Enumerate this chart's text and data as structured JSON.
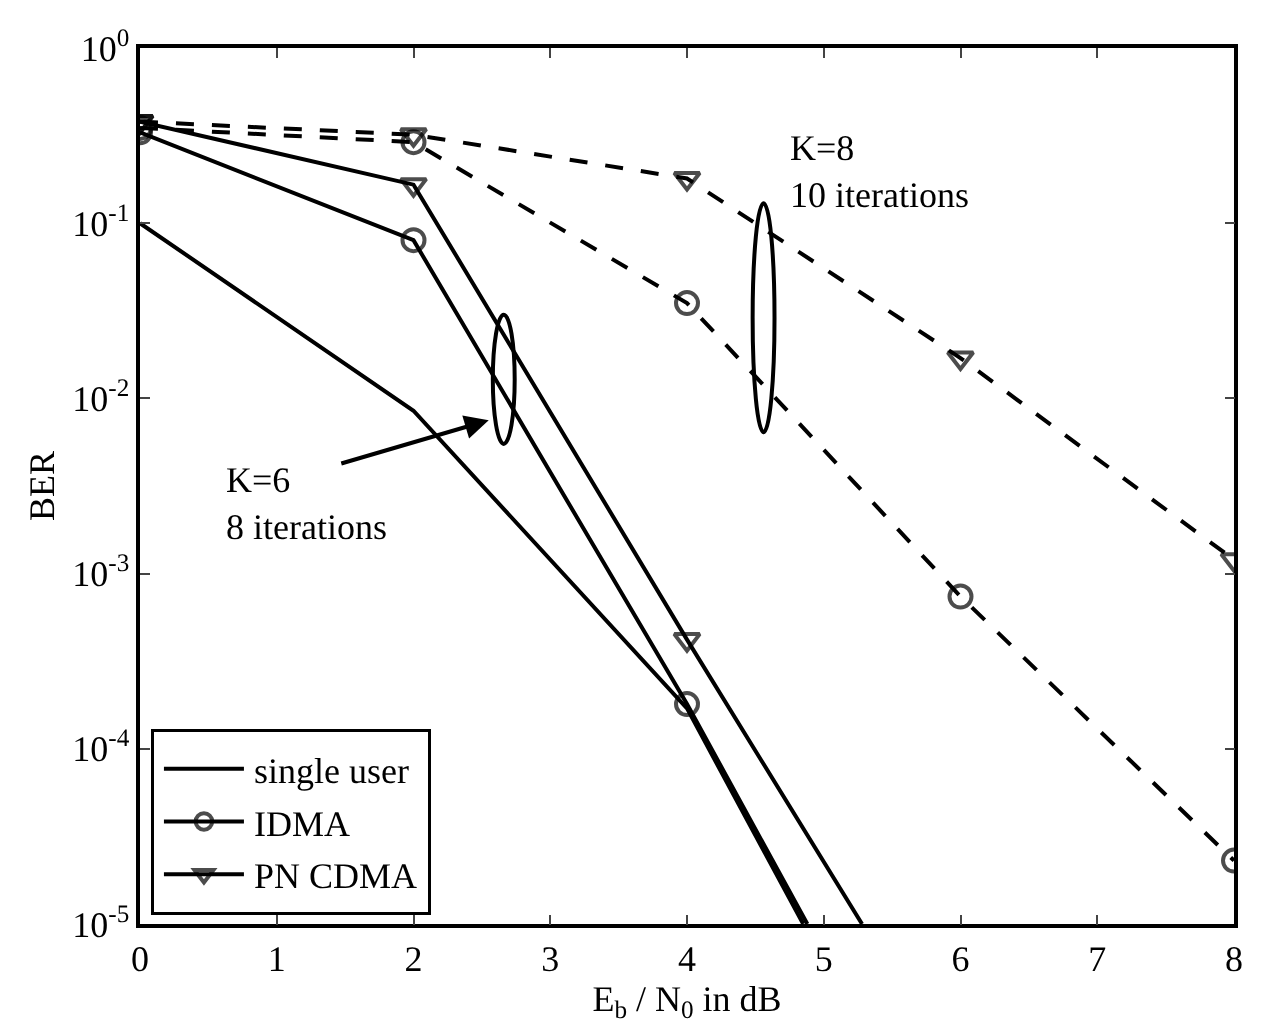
{
  "chart_data": {
    "type": "line",
    "xlabel": "E$_{b}$ / N$_{0}$ in dB",
    "ylabel": "BER",
    "xlim": [
      0,
      8
    ],
    "xticks": [
      0,
      1,
      2,
      3,
      4,
      5,
      6,
      7,
      8
    ],
    "ylim": [
      1e-05,
      1
    ],
    "log": "y",
    "yticks": [
      {
        "value": 1,
        "label": "10$^{0}$"
      },
      {
        "value": 0.1,
        "label": "10$^{-1}$"
      },
      {
        "value": 0.01,
        "label": "10$^{-2}$"
      },
      {
        "value": 0.001,
        "label": "10$^{-3}$"
      },
      {
        "value": 0.0001,
        "label": "10$^{-4}$"
      },
      {
        "value": 1e-05,
        "label": "10$^{-5}$"
      }
    ],
    "legend": "bottom left",
    "series": [
      {
        "name": "single user",
        "color": "#000000",
        "line_style": "solid",
        "marker": "none",
        "x": [
          0,
          2,
          4,
          4.85
        ],
        "values": [
          0.1,
          0.0085,
          0.00017,
          1e-05
        ]
      },
      {
        "name": "IDMA",
        "color": "#000000",
        "line_style": "solid",
        "marker": "circle",
        "x": [
          0,
          2,
          4,
          4.88
        ],
        "values": [
          0.33,
          0.08,
          0.00018,
          1e-05
        ]
      },
      {
        "name": "PN CDMA",
        "color": "#000000",
        "line_style": "solid",
        "marker": "triangle",
        "x": [
          0,
          2,
          4,
          5.28
        ],
        "values": [
          0.38,
          0.166,
          0.00042,
          1e-05
        ]
      },
      {
        "color": "#000000",
        "line_style": "dashed",
        "marker": "circle",
        "x": [
          0,
          2,
          4,
          6,
          8
        ],
        "values": [
          0.35,
          0.29,
          0.035,
          0.00074,
          2.3e-05
        ]
      },
      {
        "color": "#000000",
        "line_style": "dashed",
        "marker": "triangle",
        "x": [
          0,
          2,
          4,
          6,
          8
        ],
        "values": [
          0.38,
          0.32,
          0.18,
          0.017,
          0.0012
        ]
      }
    ],
    "annotations": [
      "K=6\n8 iterations",
      "K=8\n10 iterations"
    ]
  }
}
